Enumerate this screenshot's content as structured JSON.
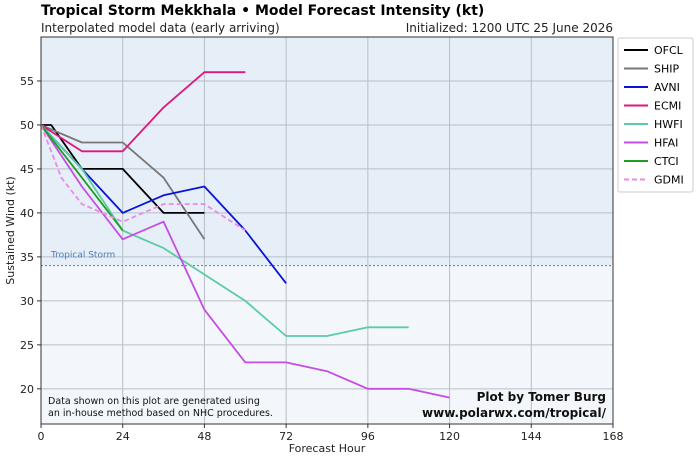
{
  "header": {
    "title": "Tropical Storm Mekkhala • Model Forecast Intensity (kt)",
    "subtitle": "Interpolated model data (early arriving)",
    "initialized": "Initialized: 1200 UTC 25 June 2026"
  },
  "chart_data": {
    "type": "line",
    "xlabel": "Forecast Hour",
    "ylabel": "Sustained Wind (kt)",
    "xlim": [
      0,
      168
    ],
    "ylim": [
      16,
      60
    ],
    "xticks": [
      0,
      24,
      48,
      72,
      96,
      120,
      144,
      168
    ],
    "yticks": [
      20,
      25,
      30,
      35,
      40,
      45,
      50,
      55
    ],
    "grid": true,
    "legend_position": "outside-right-top",
    "threshold": {
      "label": "Tropical Storm",
      "value": 34,
      "color": "#4a7fb5"
    },
    "bands": [
      {
        "from": 34,
        "to": 60,
        "color": "#e6eef8"
      },
      {
        "from": 16,
        "to": 34,
        "color": "#f3f7fc"
      }
    ],
    "series": [
      {
        "name": "OFCL",
        "color": "#000000",
        "dashed": false,
        "x": [
          0,
          3,
          12,
          24,
          36,
          48
        ],
        "y": [
          50,
          50,
          45,
          45,
          40,
          40
        ]
      },
      {
        "name": "SHIP",
        "color": "#777777",
        "dashed": false,
        "x": [
          0,
          12,
          24,
          36,
          48
        ],
        "y": [
          50,
          48,
          48,
          44,
          37
        ]
      },
      {
        "name": "AVNI",
        "color": "#0a14d8",
        "dashed": false,
        "x": [
          0,
          12,
          24,
          36,
          48,
          60,
          72
        ],
        "y": [
          50,
          45,
          40,
          42,
          43,
          38,
          32
        ]
      },
      {
        "name": "ECMI",
        "color": "#e0157e",
        "dashed": false,
        "x": [
          0,
          12,
          24,
          36,
          48,
          60
        ],
        "y": [
          50,
          47,
          47,
          52,
          56,
          56
        ]
      },
      {
        "name": "HWFI",
        "color": "#5ccba5",
        "dashed": false,
        "x": [
          0,
          12,
          24,
          36,
          48,
          60,
          72,
          84,
          96,
          108
        ],
        "y": [
          50,
          45,
          38,
          36,
          33,
          30,
          26,
          26,
          27,
          27
        ]
      },
      {
        "name": "HFAI",
        "color": "#c44de3",
        "dashed": false,
        "x": [
          0,
          12,
          24,
          36,
          48,
          60,
          72,
          84,
          96,
          108,
          120
        ],
        "y": [
          50,
          43,
          37,
          39,
          29,
          23,
          23,
          22,
          20,
          20,
          19
        ]
      },
      {
        "name": "CTCI",
        "color": "#1e9e1e",
        "dashed": false,
        "x": [
          0,
          12,
          24
        ],
        "y": [
          50,
          44,
          38
        ]
      },
      {
        "name": "GDMI",
        "color": "#e88ae8",
        "dashed": true,
        "x": [
          0,
          6,
          12,
          24,
          36,
          48,
          60
        ],
        "y": [
          50,
          44,
          41,
          39,
          41,
          41,
          38
        ]
      }
    ],
    "annotations": {
      "note_line1": "Data shown on this plot are generated using",
      "note_line2": "an in-house method based on NHC procedures.",
      "credit_line1": "Plot by Tomer Burg",
      "credit_line2": "www.polarwx.com/tropical/"
    }
  }
}
